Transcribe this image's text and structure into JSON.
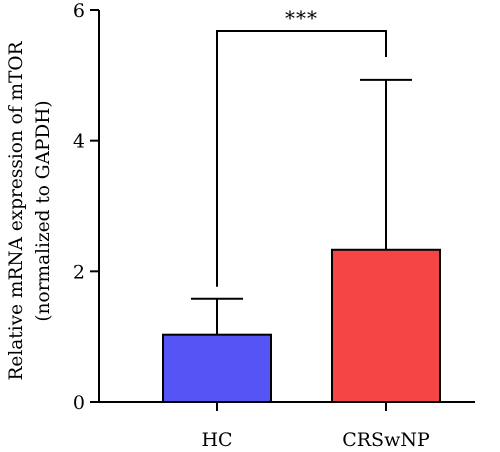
{
  "chart_data": {
    "type": "bar",
    "categories": [
      "HC",
      "CRSwNP"
    ],
    "values": [
      1.03,
      2.33
    ],
    "error_upper": [
      1.58,
      4.93
    ],
    "colors": [
      "#5555f5",
      "#f54545"
    ],
    "title": "",
    "xlabel": "",
    "ylabel_lines": [
      "Relative mRNA expression of mTOR",
      "(normalized to GAPDH)"
    ],
    "ylim": [
      0,
      6
    ],
    "yticks": [
      0,
      2,
      4,
      6
    ],
    "significance": {
      "from": 0,
      "to": 1,
      "label": "***"
    },
    "grid": false,
    "legend": "none"
  }
}
